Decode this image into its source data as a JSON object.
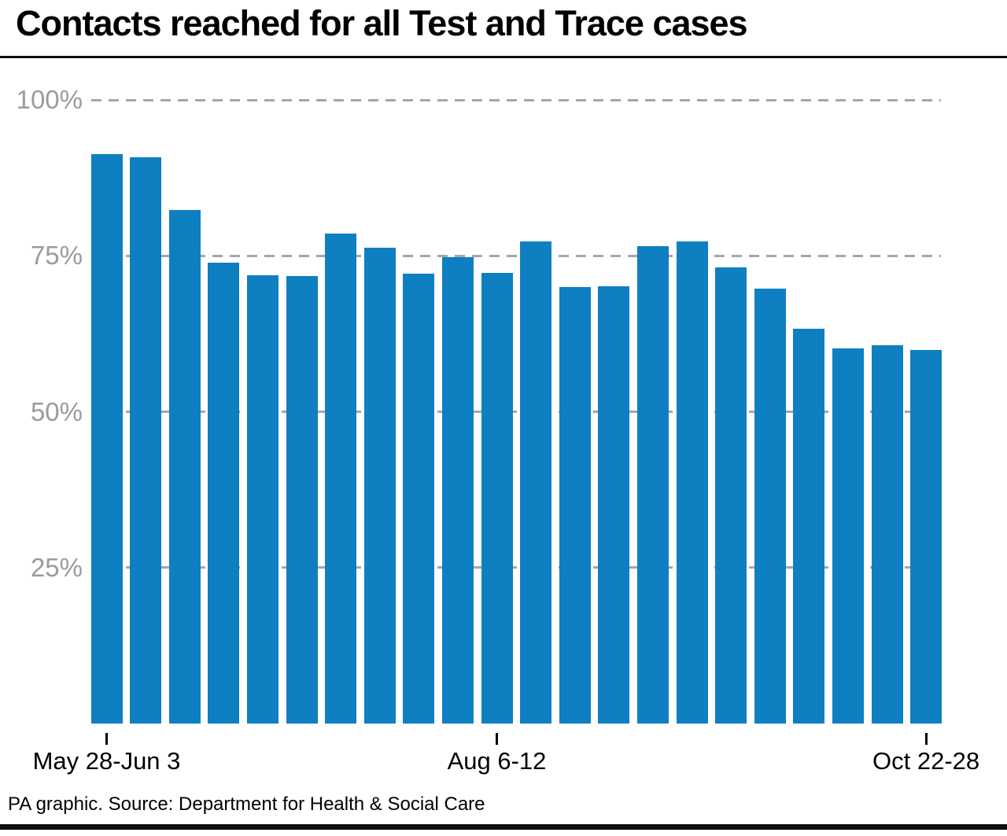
{
  "title": "Contacts reached for all Test and Trace cases",
  "footer": "PA graphic. Source: Department for Health & Social Care",
  "colors": {
    "bar": "#0e80c1",
    "grid": "#a6a6a6",
    "ytick_text": "#9b9b9b",
    "text": "#000000",
    "rule": "#0d0d0d"
  },
  "chart_data": {
    "type": "bar",
    "title": "Contacts reached for all Test and Trace cases",
    "xlabel": "",
    "ylabel": "",
    "ylim": [
      0,
      100
    ],
    "yticks": [
      25,
      50,
      75,
      100
    ],
    "ytick_suffix": "%",
    "grid": true,
    "grid_style": "dashed",
    "legend": false,
    "values": [
      91.3,
      90.8,
      82.4,
      73.9,
      71.9,
      71.7,
      78.6,
      76.3,
      72.1,
      74.8,
      72.3,
      77.3,
      70.0,
      70.1,
      76.5,
      77.3,
      73.1,
      69.7,
      63.3,
      60.2,
      60.7,
      59.9
    ],
    "xtick_labels": [
      {
        "index": 0,
        "label": "May 28-Jun 3"
      },
      {
        "index": 10,
        "label": "Aug 6-12"
      },
      {
        "index": 21,
        "label": "Oct 22-28"
      }
    ]
  }
}
